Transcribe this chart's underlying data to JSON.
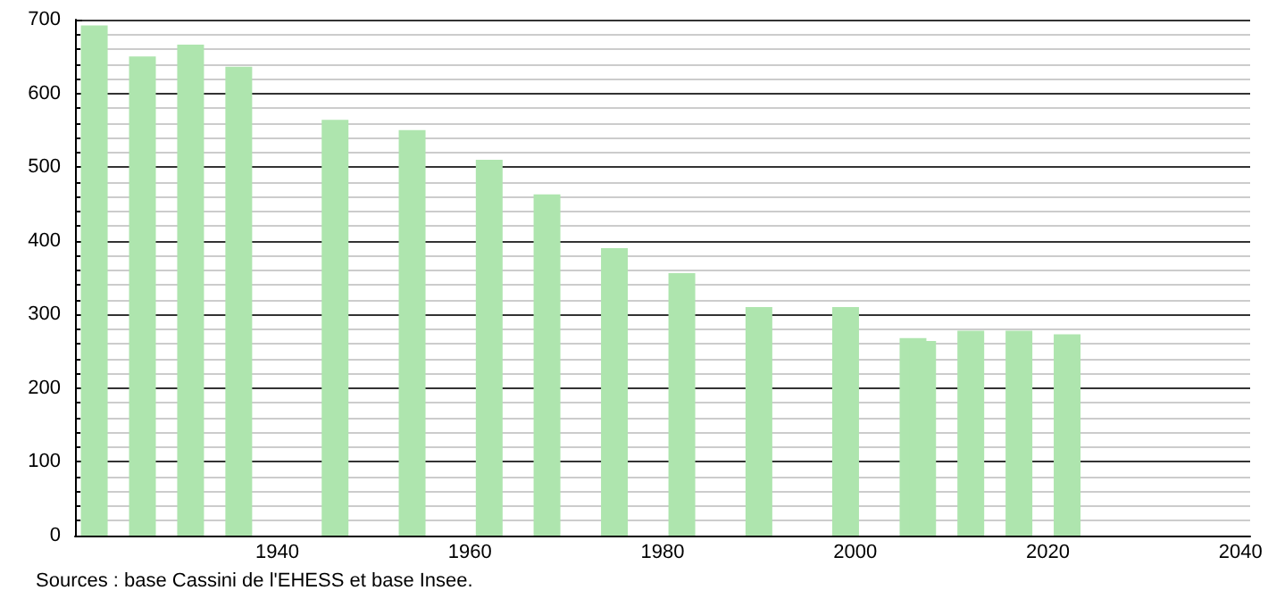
{
  "chart_data": {
    "type": "bar",
    "x": [
      1921,
      1926,
      1931,
      1936,
      1946,
      1954,
      1962,
      1968,
      1975,
      1982,
      1990,
      1999,
      2006,
      2007,
      2012,
      2017,
      2022
    ],
    "values": [
      692,
      650,
      666,
      636,
      564,
      550,
      510,
      463,
      390,
      356,
      310,
      310,
      268,
      264,
      278,
      278,
      273
    ],
    "color": "#aee5ae",
    "xlim": [
      1919,
      2041
    ],
    "xticks": [
      1940,
      1960,
      1980,
      2000,
      2020,
      2040
    ],
    "ylim": [
      0,
      700
    ],
    "yticks": [
      0,
      100,
      200,
      300,
      400,
      500,
      600,
      700
    ],
    "grid": "y",
    "annotations": [
      "Sources : base Cassini de l'EHESS et base Insee."
    ]
  }
}
